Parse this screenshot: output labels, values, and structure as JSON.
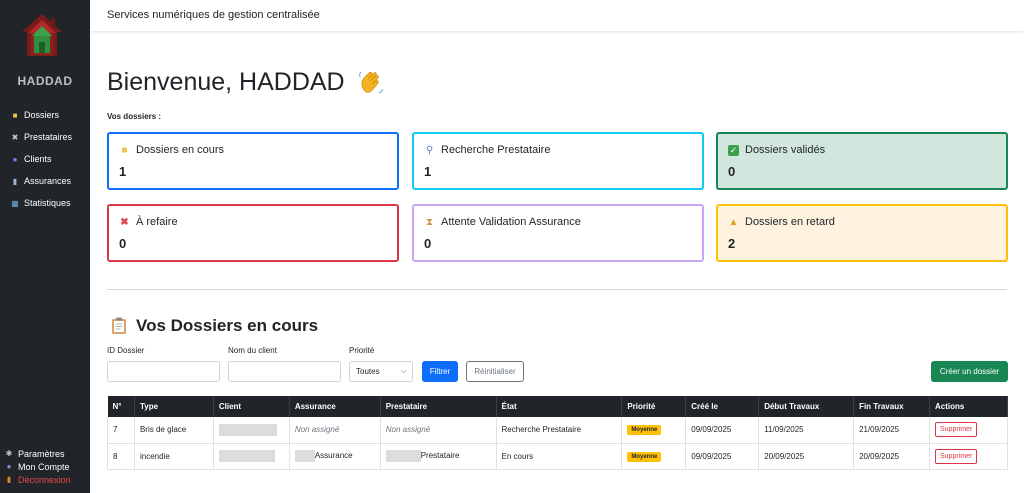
{
  "app": {
    "brand": "HADDAD",
    "header_title": "Services numériques de gestion centralisée"
  },
  "sidebar": {
    "items": [
      {
        "label": "Dossiers",
        "icon": "folder-icon"
      },
      {
        "label": "Prestataires",
        "icon": "tools-icon"
      },
      {
        "label": "Clients",
        "icon": "people-icon"
      },
      {
        "label": "Assurances",
        "icon": "building-icon"
      },
      {
        "label": "Statistiques",
        "icon": "chart-icon"
      }
    ],
    "bottom": [
      {
        "label": "Paramètres",
        "icon": "gear-icon"
      },
      {
        "label": "Mon Compte",
        "icon": "user-icon"
      },
      {
        "label": "Déconnexion",
        "icon": "door-icon"
      }
    ]
  },
  "main": {
    "welcome": "Bienvenue, HADDAD",
    "section_label": "Vos dossiers :",
    "cards": [
      {
        "title": "Dossiers en cours",
        "value": "1",
        "border": "#0d6efd",
        "bg": "#ffffff",
        "icon": "folder-icon"
      },
      {
        "title": "Recherche Prestataire",
        "value": "1",
        "border": "#0dcaf0",
        "bg": "#ffffff",
        "icon": "magnifier-icon"
      },
      {
        "title": "Dossiers validés",
        "value": "0",
        "border": "#198754",
        "bg": "#d1e7dd",
        "icon": "check-icon"
      },
      {
        "title": "À refaire",
        "value": "0",
        "border": "#dc3545",
        "bg": "#ffffff",
        "icon": "cross-icon"
      },
      {
        "title": "Attente Validation Assurance",
        "value": "0",
        "border": "#c9a7f5",
        "bg": "#ffffff",
        "icon": "hourglass-icon"
      },
      {
        "title": "Dossiers en retard",
        "value": "2",
        "border": "#ffc107",
        "bg": "#fff3e0",
        "icon": "warning-icon"
      }
    ],
    "list_title": "Vos Dossiers en cours",
    "filters": {
      "id_label": "ID Dossier",
      "client_label": "Nom du client",
      "priority_label": "Priorité",
      "priority_value": "Toutes",
      "filter_button": "Filtrer",
      "reset_button": "Réinitialiser",
      "create_button": "Créer un dossier"
    },
    "table": {
      "headers": [
        "N°",
        "Type",
        "Client",
        "Assurance",
        "Prestataire",
        "État",
        "Priorité",
        "Créé le",
        "Début Travaux",
        "Fin Travaux",
        "Actions"
      ],
      "rows": [
        {
          "num": "7",
          "type": "Bris de glace",
          "assurance": "Non assigné",
          "prestataire": "Non assigné",
          "etat": "Recherche Prestataire",
          "priorite": "Moyenne",
          "cree": "09/09/2025",
          "debut": "11/09/2025",
          "fin": "21/09/2025",
          "action": "Supprimer"
        },
        {
          "num": "8",
          "type": "incendie",
          "assurance": "Assurance",
          "prestataire": "Prestataire",
          "etat": "En cours",
          "priorite": "Moyenne",
          "cree": "09/09/2025",
          "debut": "20/09/2025",
          "fin": "20/09/2025",
          "action": "Supprimer"
        }
      ]
    }
  }
}
